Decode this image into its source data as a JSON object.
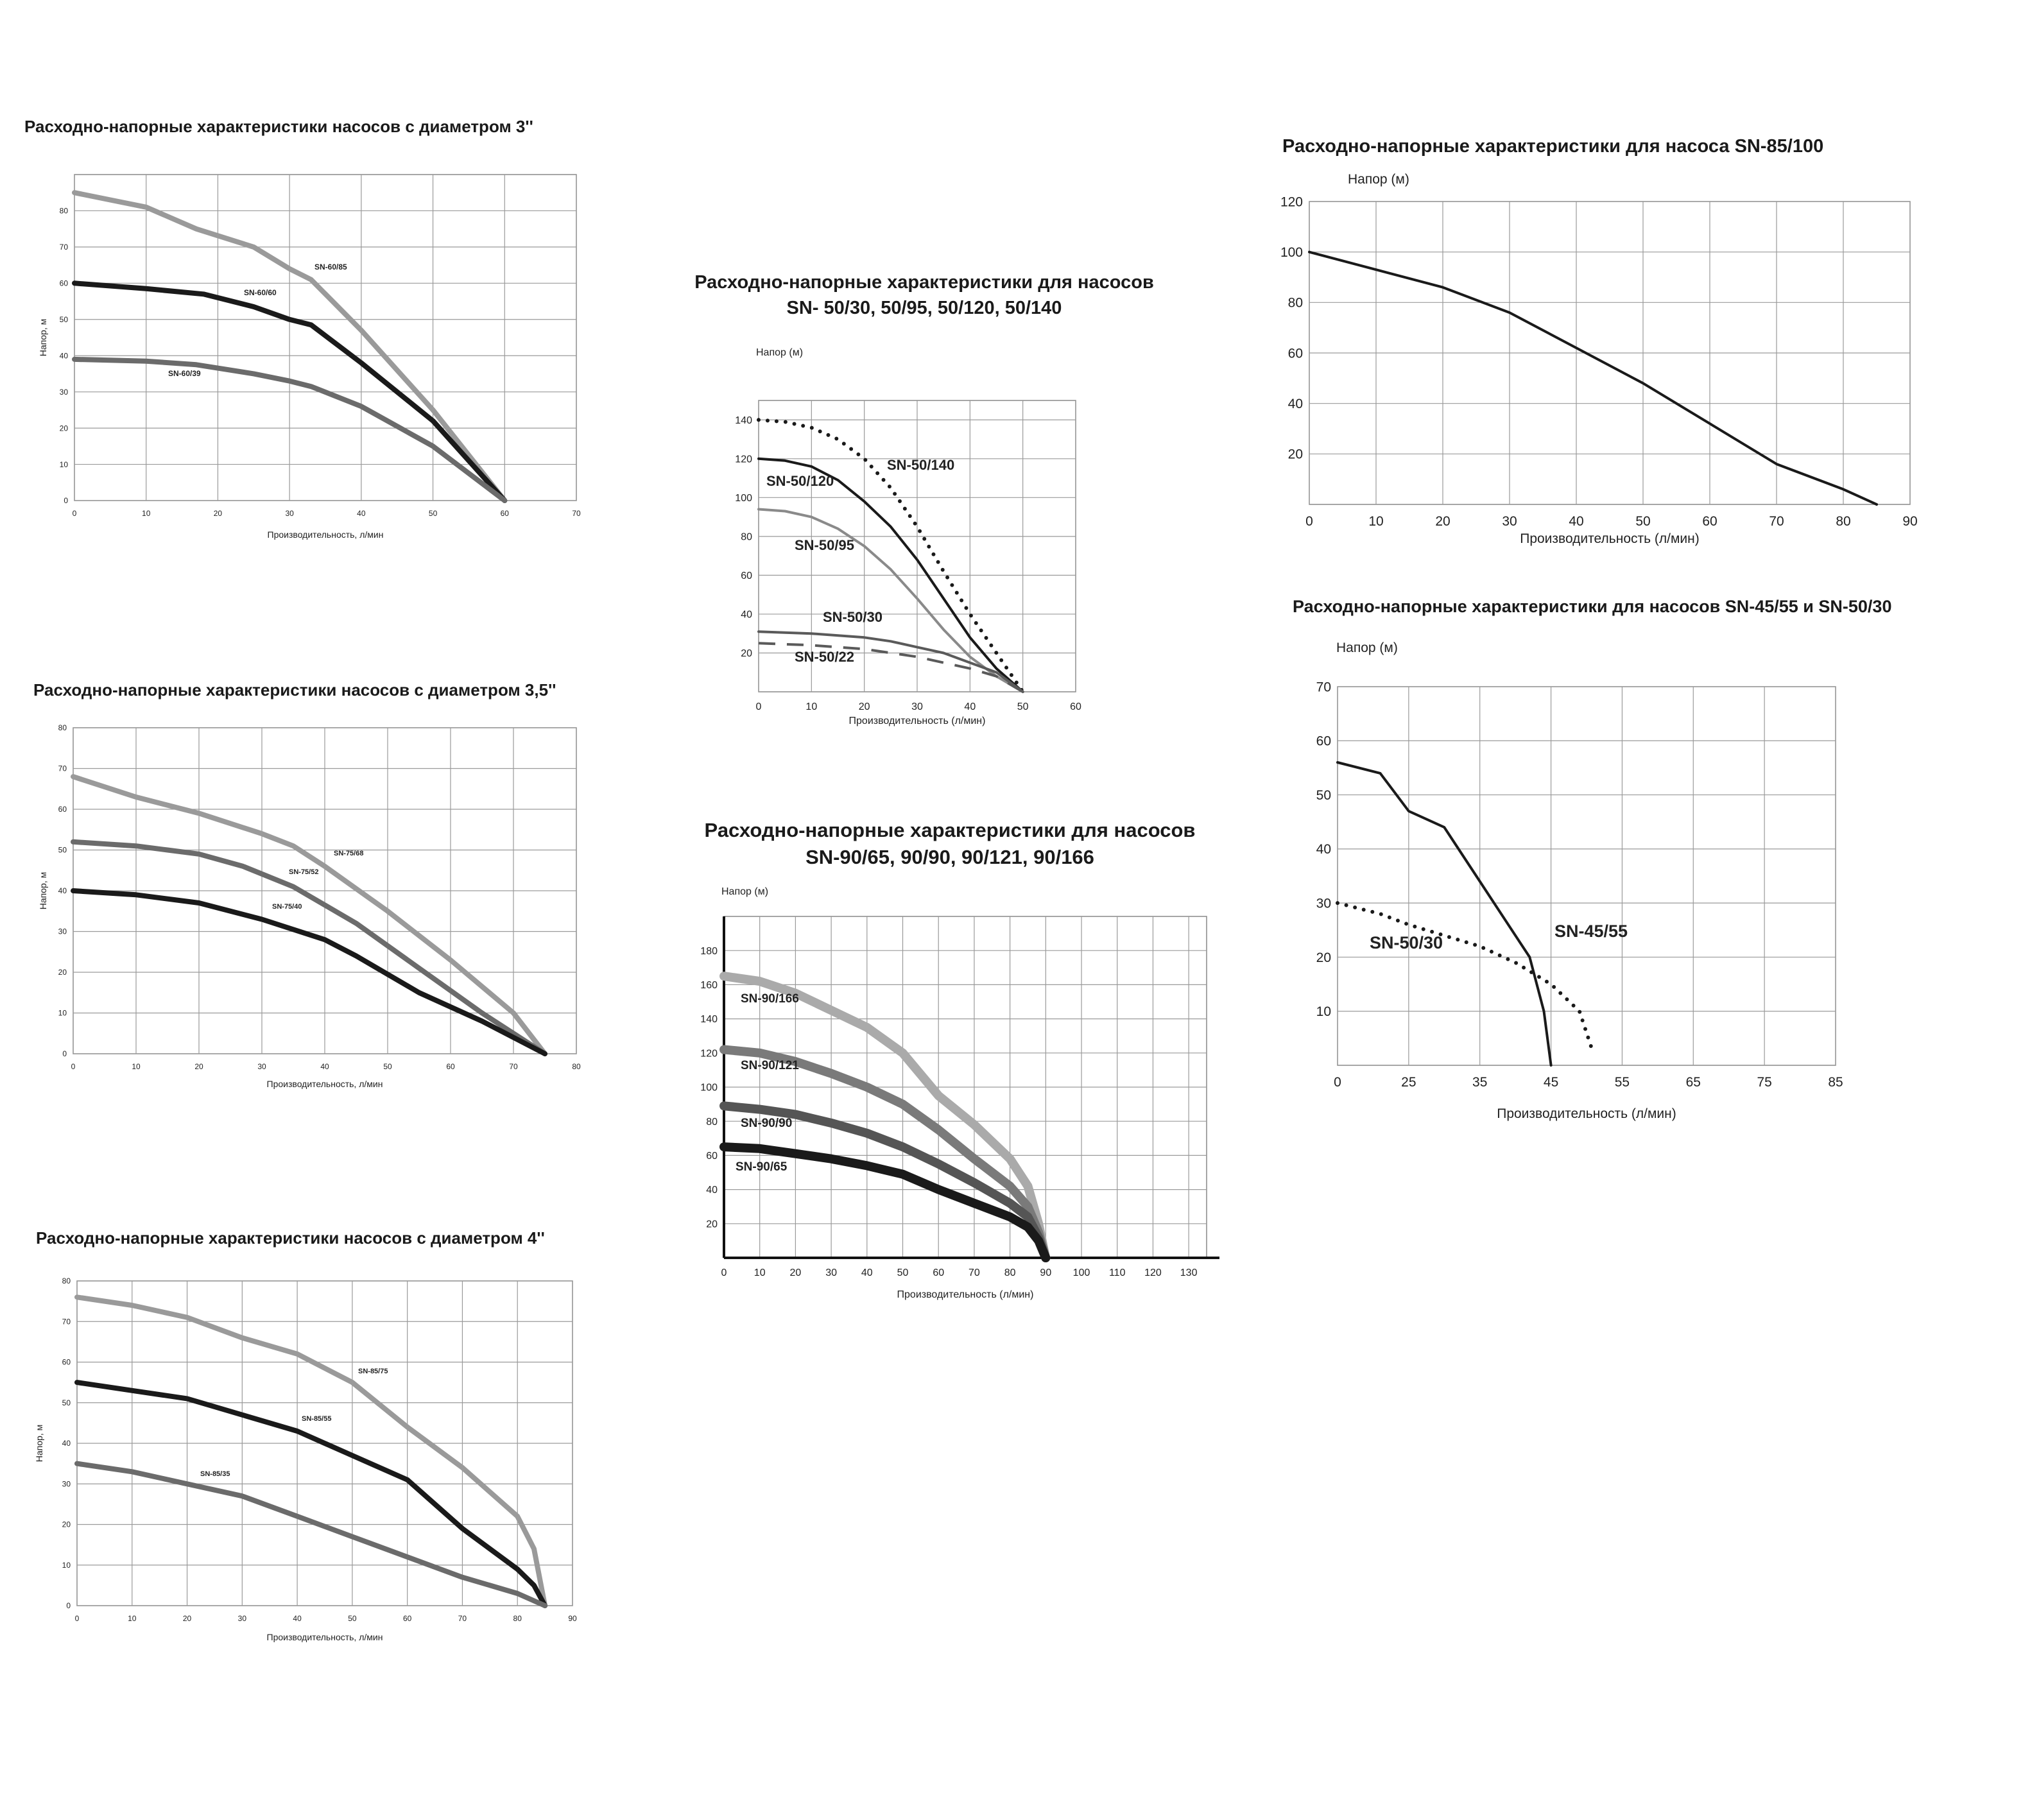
{
  "chart_data": [
    {
      "type": "line",
      "title": "Расходно-напорные характеристики насосов с диаметром 3''",
      "xlabel": "Производительность, л/мин",
      "ylabel": "Напор, м",
      "xlim": [
        0,
        70
      ],
      "ylim": [
        0,
        90
      ],
      "xticks": [
        0,
        10,
        20,
        30,
        40,
        50,
        60,
        70
      ],
      "yticks": [
        0,
        10,
        20,
        30,
        40,
        50,
        60,
        70,
        80
      ],
      "grid": true,
      "series": [
        {
          "name": "SN-60/85",
          "color": "#9a9a9a",
          "style": "solid",
          "x": [
            0,
            10,
            17,
            25,
            30,
            33,
            40,
            50,
            60
          ],
          "y": [
            85,
            81,
            75,
            70,
            64,
            61,
            47,
            25,
            0
          ]
        },
        {
          "name": "SN-60/60",
          "color": "#1a1a1a",
          "style": "solid",
          "x": [
            0,
            10,
            18,
            25,
            30,
            33,
            40,
            50,
            60
          ],
          "y": [
            60,
            58.5,
            57,
            53.5,
            50,
            48.5,
            38,
            22,
            0
          ]
        },
        {
          "name": "SN-60/39",
          "color": "#6b6b6b",
          "style": "solid",
          "x": [
            0,
            10,
            17,
            25,
            30,
            33,
            40,
            50,
            60
          ],
          "y": [
            39,
            38.5,
            37.5,
            35,
            33,
            31.5,
            26,
            15,
            0
          ]
        }
      ]
    },
    {
      "type": "line",
      "title": "Расходно-напорные характеристики насосов с диаметром 3,5''",
      "xlabel": "Производительность, л/мин",
      "ylabel": "Напор, м",
      "xlim": [
        0,
        80
      ],
      "ylim": [
        0,
        80
      ],
      "xticks": [
        0,
        10,
        20,
        30,
        40,
        50,
        60,
        70,
        80
      ],
      "yticks": [
        0,
        10,
        20,
        30,
        40,
        50,
        60,
        70,
        80
      ],
      "grid": true,
      "series": [
        {
          "name": "SN-75/68",
          "color": "#9a9a9a",
          "style": "solid",
          "x": [
            0,
            10,
            20,
            30,
            35,
            40,
            50,
            60,
            70,
            75
          ],
          "y": [
            68,
            63,
            59,
            54,
            51,
            46,
            35,
            23,
            10,
            0
          ]
        },
        {
          "name": "SN-75/52",
          "color": "#6b6b6b",
          "style": "solid",
          "x": [
            0,
            10,
            15,
            20,
            27,
            35,
            45,
            55,
            65,
            75
          ],
          "y": [
            52,
            51,
            50,
            49,
            46,
            41,
            32,
            21,
            10,
            0
          ]
        },
        {
          "name": "SN-75/40",
          "color": "#1a1a1a",
          "style": "solid",
          "x": [
            0,
            10,
            20,
            30,
            40,
            45,
            55,
            65,
            75
          ],
          "y": [
            40,
            39,
            37,
            33,
            28,
            24,
            15,
            8,
            0
          ]
        }
      ]
    },
    {
      "type": "line",
      "title": "Расходно-напорные характеристики насосов с диаметром 4''",
      "xlabel": "Производительность, л/мин",
      "ylabel": "Напор, м",
      "xlim": [
        0,
        90
      ],
      "ylim": [
        0,
        80
      ],
      "xticks": [
        0,
        10,
        20,
        30,
        40,
        50,
        60,
        70,
        80,
        90
      ],
      "yticks": [
        0,
        10,
        20,
        30,
        40,
        50,
        60,
        70,
        80
      ],
      "grid": true,
      "series": [
        {
          "name": "SN-85/75",
          "color": "#9a9a9a",
          "style": "solid",
          "x": [
            0,
            10,
            20,
            30,
            40,
            50,
            60,
            70,
            80,
            83,
            85
          ],
          "y": [
            76,
            74,
            71,
            66,
            62,
            55,
            44,
            34,
            22,
            14,
            0
          ]
        },
        {
          "name": "SN-85/55",
          "color": "#1a1a1a",
          "style": "solid",
          "x": [
            0,
            10,
            20,
            30,
            40,
            50,
            60,
            70,
            80,
            83,
            85
          ],
          "y": [
            55,
            53,
            51,
            47,
            43,
            37,
            31,
            19,
            9,
            5,
            0
          ]
        },
        {
          "name": "SN-85/35",
          "color": "#6b6b6b",
          "style": "solid",
          "x": [
            0,
            10,
            20,
            30,
            40,
            50,
            60,
            70,
            80,
            85
          ],
          "y": [
            35,
            33,
            30,
            27,
            22,
            17,
            12,
            7,
            3,
            0
          ]
        }
      ]
    },
    {
      "type": "line",
      "title": "Расходно-напорные характеристики для насосов",
      "subtitle": "SN- 50/30, 50/95, 50/120, 50/140",
      "xlabel": "Производительность (л/мин)",
      "ylabel": "Напор (м)",
      "xlim": [
        0,
        60
      ],
      "ylim": [
        0,
        150
      ],
      "xticks": [
        0,
        10,
        20,
        30,
        40,
        50,
        60
      ],
      "yticks": [
        20,
        40,
        60,
        80,
        100,
        120,
        140
      ],
      "grid": true,
      "series": [
        {
          "name": "SN-50/140",
          "color": "#1a1a1a",
          "style": "dotted",
          "x": [
            0,
            5,
            10,
            15,
            20,
            25,
            30,
            35,
            40,
            45,
            50
          ],
          "y": [
            140,
            139,
            136,
            130,
            120,
            105,
            85,
            62,
            40,
            20,
            0
          ]
        },
        {
          "name": "SN-50/120",
          "color": "#1a1a1a",
          "style": "solid",
          "x": [
            0,
            5,
            10,
            15,
            20,
            25,
            30,
            35,
            40,
            45,
            50
          ],
          "y": [
            120,
            119,
            116,
            109,
            98,
            85,
            68,
            48,
            28,
            12,
            0
          ]
        },
        {
          "name": "SN-50/95",
          "color": "#8a8a8a",
          "style": "solid",
          "x": [
            0,
            5,
            10,
            15,
            20,
            25,
            30,
            35,
            40,
            45,
            50
          ],
          "y": [
            94,
            93,
            90,
            84,
            75,
            63,
            48,
            32,
            18,
            8,
            0
          ]
        },
        {
          "name": "SN-50/30",
          "color": "#5a5a5a",
          "style": "solid",
          "x": [
            0,
            10,
            20,
            25,
            30,
            35,
            40,
            45,
            50
          ],
          "y": [
            31,
            30,
            28,
            26,
            23,
            20,
            15,
            10,
            0
          ]
        },
        {
          "name": "SN-50/22",
          "color": "#5a5a5a",
          "style": "dashed",
          "x": [
            0,
            10,
            20,
            30,
            40,
            45,
            50
          ],
          "y": [
            25,
            24,
            22,
            18,
            12,
            8,
            0
          ]
        }
      ]
    },
    {
      "type": "line",
      "title": "Расходно-напорные характеристики для насосов",
      "subtitle": "SN-90/65, 90/90, 90/121, 90/166",
      "xlabel": "Производительность (л/мин)",
      "ylabel": "Напор (м)",
      "xlim": [
        0,
        135
      ],
      "ylim": [
        0,
        200
      ],
      "xticks": [
        0,
        10,
        20,
        30,
        40,
        50,
        60,
        70,
        80,
        90,
        100,
        110,
        120,
        130
      ],
      "yticks": [
        20,
        40,
        60,
        80,
        100,
        120,
        140,
        160,
        180
      ],
      "grid": true,
      "series": [
        {
          "name": "SN-90/166",
          "color": "#aaaaaa",
          "style": "solid",
          "x": [
            0,
            10,
            20,
            30,
            40,
            50,
            60,
            70,
            80,
            85,
            88,
            90
          ],
          "y": [
            165,
            162,
            155,
            145,
            135,
            120,
            95,
            78,
            58,
            42,
            20,
            0
          ]
        },
        {
          "name": "SN-90/121",
          "color": "#7a7a7a",
          "style": "solid",
          "x": [
            0,
            10,
            20,
            30,
            40,
            50,
            60,
            70,
            80,
            85,
            88,
            90
          ],
          "y": [
            122,
            120,
            115,
            108,
            100,
            90,
            75,
            58,
            42,
            30,
            15,
            0
          ]
        },
        {
          "name": "SN-90/90",
          "color": "#555555",
          "style": "solid",
          "x": [
            0,
            10,
            20,
            30,
            40,
            50,
            60,
            70,
            80,
            85,
            88,
            90
          ],
          "y": [
            89,
            87,
            84,
            79,
            73,
            65,
            55,
            44,
            32,
            24,
            12,
            0
          ]
        },
        {
          "name": "SN-90/65",
          "color": "#1a1a1a",
          "style": "solid",
          "x": [
            0,
            10,
            20,
            30,
            40,
            50,
            60,
            70,
            80,
            85,
            88,
            90
          ],
          "y": [
            65,
            64,
            61,
            58,
            54,
            49,
            40,
            32,
            24,
            18,
            10,
            0
          ]
        }
      ]
    },
    {
      "type": "line",
      "title": "Расходно-напорные характеристики для насоса",
      "title_model": "SN-85/100",
      "xlabel": "Производительность (л/мин)",
      "ylabel": "Напор (м)",
      "xlim": [
        0,
        90
      ],
      "ylim": [
        0,
        120
      ],
      "xticks": [
        0,
        10,
        20,
        30,
        40,
        50,
        60,
        70,
        80,
        90
      ],
      "yticks": [
        20,
        40,
        60,
        80,
        100,
        120
      ],
      "grid": true,
      "series": [
        {
          "name": "SN-85/100",
          "color": "#1a1a1a",
          "style": "solid",
          "x": [
            0,
            10,
            20,
            30,
            40,
            50,
            60,
            70,
            80,
            85
          ],
          "y": [
            100,
            93,
            86,
            76,
            62,
            48,
            32,
            16,
            6,
            0
          ]
        }
      ]
    },
    {
      "type": "line",
      "title": "Расходно-напорные характеристики для насосов",
      "title_model": "SN-45/55 и SN-50/30",
      "xlabel": "Производительность (л/мин)",
      "ylabel": "Напор (м)",
      "xlim": [
        0,
        85
      ],
      "ylim": [
        0,
        70
      ],
      "xticks": [
        0,
        25,
        35,
        45,
        55,
        65,
        75,
        85
      ],
      "yticks": [
        10,
        20,
        30,
        40,
        50,
        60,
        70
      ],
      "grid": true,
      "series": [
        {
          "name": "SN-45/55",
          "color": "#1a1a1a",
          "style": "solid",
          "x": [
            0,
            15,
            25,
            30,
            35,
            40,
            42,
            44,
            45
          ],
          "y": [
            56,
            54,
            47,
            44,
            34,
            24,
            20,
            10,
            0
          ]
        },
        {
          "name": "SN-50/30",
          "color": "#1a1a1a",
          "style": "dotted",
          "x": [
            0,
            15,
            25,
            35,
            40,
            45,
            49,
            51
          ],
          "y": [
            30,
            28,
            26,
            22,
            19,
            15,
            10,
            2
          ]
        }
      ]
    }
  ]
}
